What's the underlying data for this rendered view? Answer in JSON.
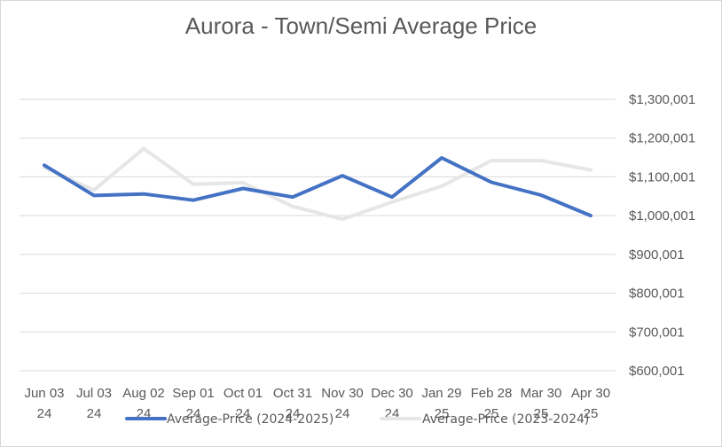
{
  "chart_data": {
    "type": "line",
    "title": "Aurora  - Town/Semi Average Price",
    "categories": [
      [
        "Jun 03",
        "24"
      ],
      [
        "Jul 03",
        "24"
      ],
      [
        "Aug 02",
        "24"
      ],
      [
        "Sep 01",
        "24"
      ],
      [
        "Oct 01",
        "24"
      ],
      [
        "Oct 31",
        "24"
      ],
      [
        "Nov 30",
        "24"
      ],
      [
        "Dec 30",
        "24"
      ],
      [
        "Jan 29",
        "25"
      ],
      [
        "Feb 28",
        "25"
      ],
      [
        "Mar 30",
        "25"
      ],
      [
        "Apr 30",
        "25"
      ]
    ],
    "series": [
      {
        "name": "Average-Price (2024-2025)",
        "color": "#4472c4",
        "values": [
          1130000,
          1052000,
          1056000,
          1040000,
          1070000,
          1048000,
          1103000,
          1048000,
          1149000,
          1086000,
          1053000,
          1000000
        ]
      },
      {
        "name": "Average-Price (2023-2024)",
        "color": "#e7e6e6",
        "values": [
          1124000,
          1066000,
          1173000,
          1081000,
          1085000,
          1024000,
          991000,
          1035000,
          1076000,
          1142000,
          1142000,
          1118000
        ]
      }
    ],
    "y_ticks": [
      "$1,300,001",
      "$1,200,001",
      "$1,100,001",
      "$1,000,001",
      "$900,001",
      "$800,001",
      "$700,001",
      "$600,001"
    ],
    "ylim": [
      600001,
      1300001
    ],
    "grid": true,
    "legend": "bottom",
    "xlabel": "",
    "ylabel": ""
  }
}
